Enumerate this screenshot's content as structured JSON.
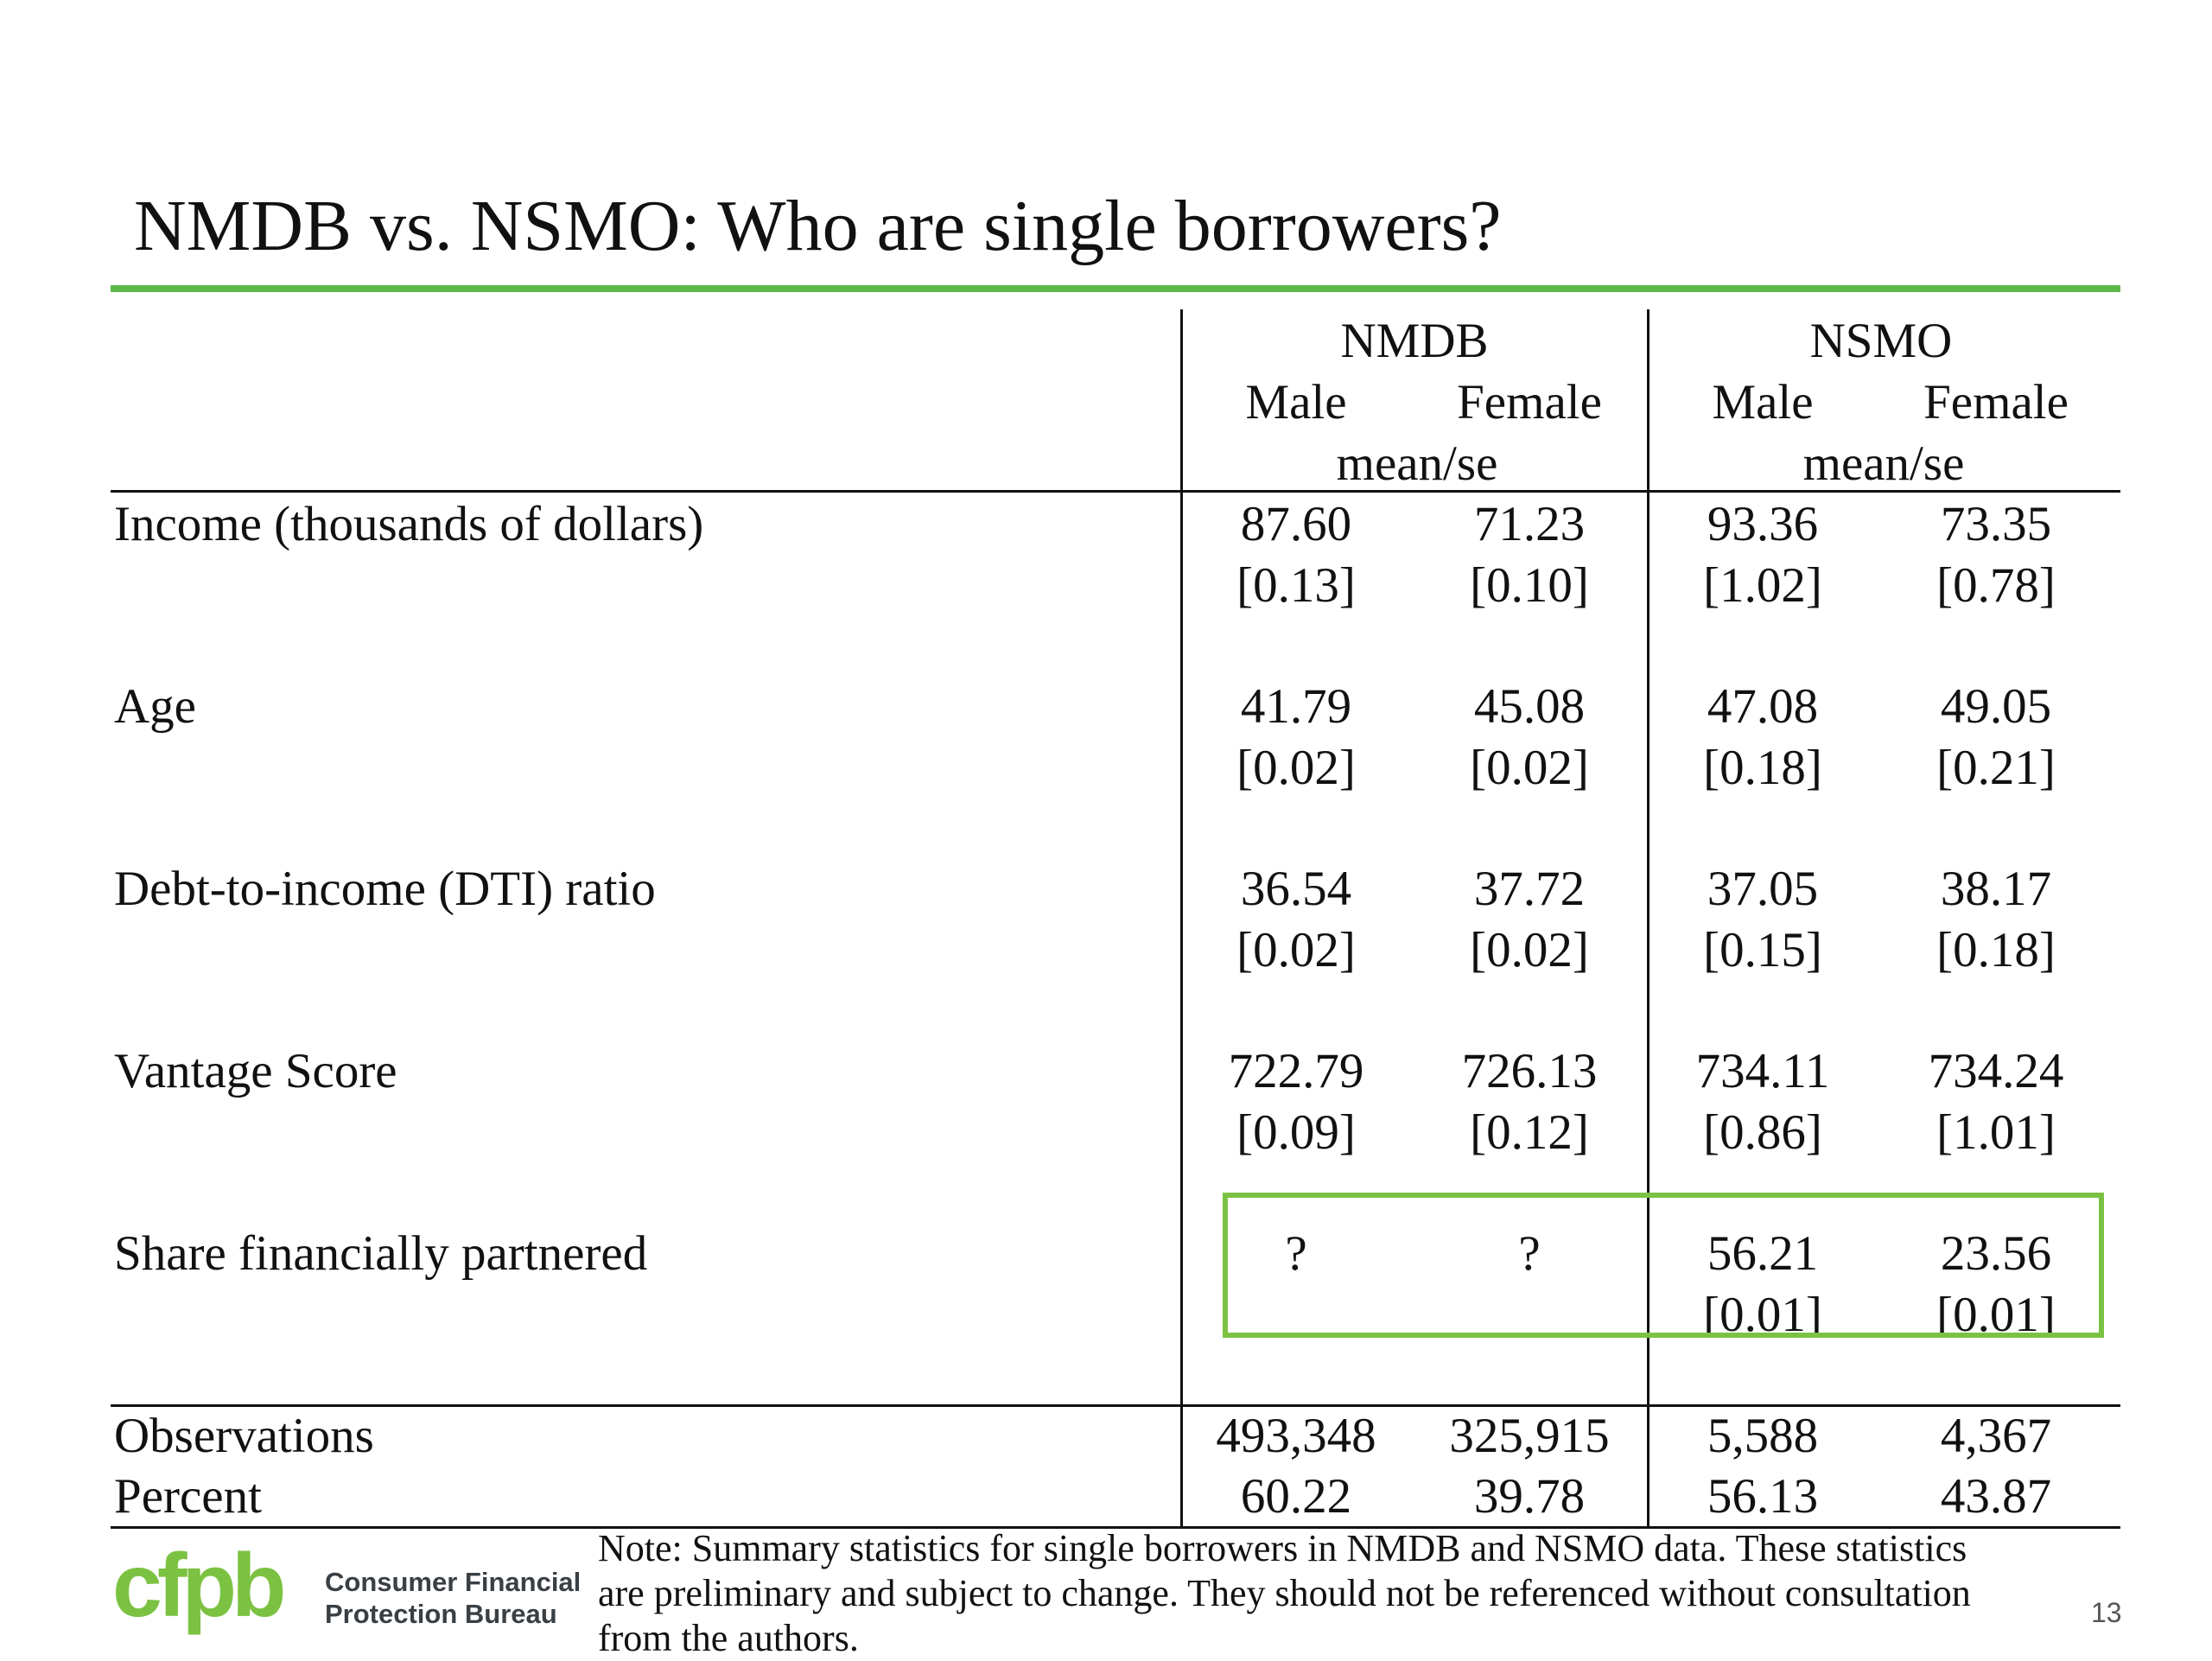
{
  "slide": {
    "title": "NMDB vs. NSMO: Who are single borrowers?",
    "page_number": "13",
    "accent_color": "#5cb848"
  },
  "table": {
    "groups": [
      "NMDB",
      "NSMO"
    ],
    "subheaders": [
      "Male",
      "Female",
      "Male",
      "Female"
    ],
    "stat_label": "mean/se",
    "rows": [
      {
        "label": "Income (thousands of dollars)",
        "means": [
          "87.60",
          "71.23",
          "93.36",
          "73.35"
        ],
        "se": [
          "[0.13]",
          "[0.10]",
          "[1.02]",
          "[0.78]"
        ]
      },
      {
        "label": "Age",
        "means": [
          "41.79",
          "45.08",
          "47.08",
          "49.05"
        ],
        "se": [
          "[0.02]",
          "[0.02]",
          "[0.18]",
          "[0.21]"
        ]
      },
      {
        "label": "Debt-to-income (DTI) ratio",
        "means": [
          "36.54",
          "37.72",
          "37.05",
          "38.17"
        ],
        "se": [
          "[0.02]",
          "[0.02]",
          "[0.15]",
          "[0.18]"
        ]
      },
      {
        "label": "Vantage Score",
        "means": [
          "722.79",
          "726.13",
          "734.11",
          "734.24"
        ],
        "se": [
          "[0.09]",
          "[0.12]",
          "[0.86]",
          "[1.01]"
        ]
      },
      {
        "label": "Share financially partnered",
        "means": [
          "?",
          "?",
          "56.21",
          "23.56"
        ],
        "se": [
          "",
          "",
          "[0.01]",
          "[0.01]"
        ]
      }
    ],
    "footer_rows": [
      {
        "label": "Observations",
        "values": [
          "493,348",
          "325,915",
          "5,588",
          "4,367"
        ]
      },
      {
        "label": "Percent",
        "values": [
          "60.22",
          "39.78",
          "56.13",
          "43.87"
        ]
      }
    ]
  },
  "footer": {
    "logo_mark": "cfpb",
    "logo_line1": "Consumer Financial",
    "logo_line2": "Protection Bureau",
    "logo_color": "#7cc242",
    "note_lines": [
      "Note: Summary statistics for single borrowers in NMDB and NSMO data. These statistics",
      "are preliminary and subject to change. They should not be referenced without consultation",
      "from the authors."
    ]
  }
}
